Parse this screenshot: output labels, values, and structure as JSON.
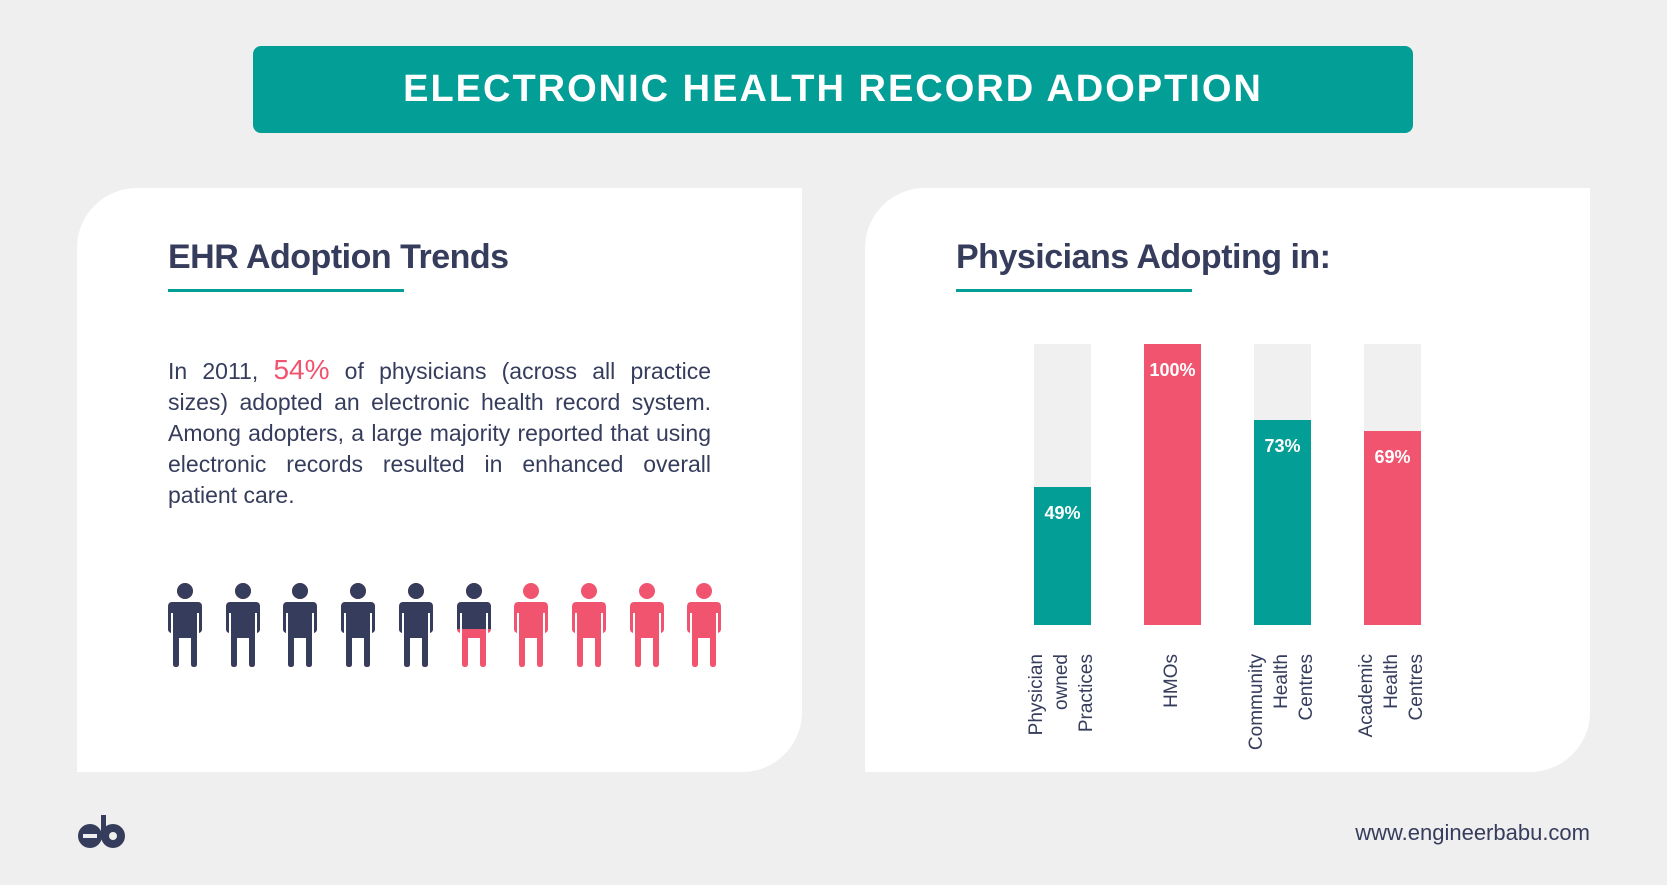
{
  "title": "ELECTRONIC HEALTH RECORD ADOPTION",
  "left": {
    "heading": "EHR Adoption Trends",
    "paragraph_pre": "In 2011, ",
    "paragraph_highlight": "54%",
    "paragraph_post": " of physicians (across all practice sizes) adopted an electronic health record system. Among adopters, a large majority reported that using electronic records resulted in enhanced overall patient care.",
    "pictogram": {
      "total": 10,
      "filled": 5.4,
      "colors": {
        "filled": "#363d5c",
        "rest": "#f0546f"
      }
    }
  },
  "right": {
    "heading": "Physicians Adopting in:"
  },
  "chart_data": {
    "type": "bar",
    "title": "Physicians Adopting in:",
    "categories": [
      [
        "Physician",
        "owned",
        "Practices"
      ],
      [
        "HMOs"
      ],
      [
        "Community",
        "Health",
        "Centres"
      ],
      [
        "Academic",
        "Health",
        "Centres"
      ]
    ],
    "values": [
      49,
      100,
      73,
      69
    ],
    "labels": [
      "49%",
      "100%",
      "73%",
      "69%"
    ],
    "colors": [
      "#039e96",
      "#f0546f",
      "#039e96",
      "#f0546f"
    ],
    "track_color": "#f0f0f0",
    "ylim": [
      0,
      100
    ],
    "grid": false
  },
  "footer": {
    "url": "www.engineerbabu.com",
    "logo_text": "eb"
  },
  "colors": {
    "teal": "#039e96",
    "pink": "#f0546f",
    "navy": "#363d5c",
    "background": "#efefef"
  }
}
